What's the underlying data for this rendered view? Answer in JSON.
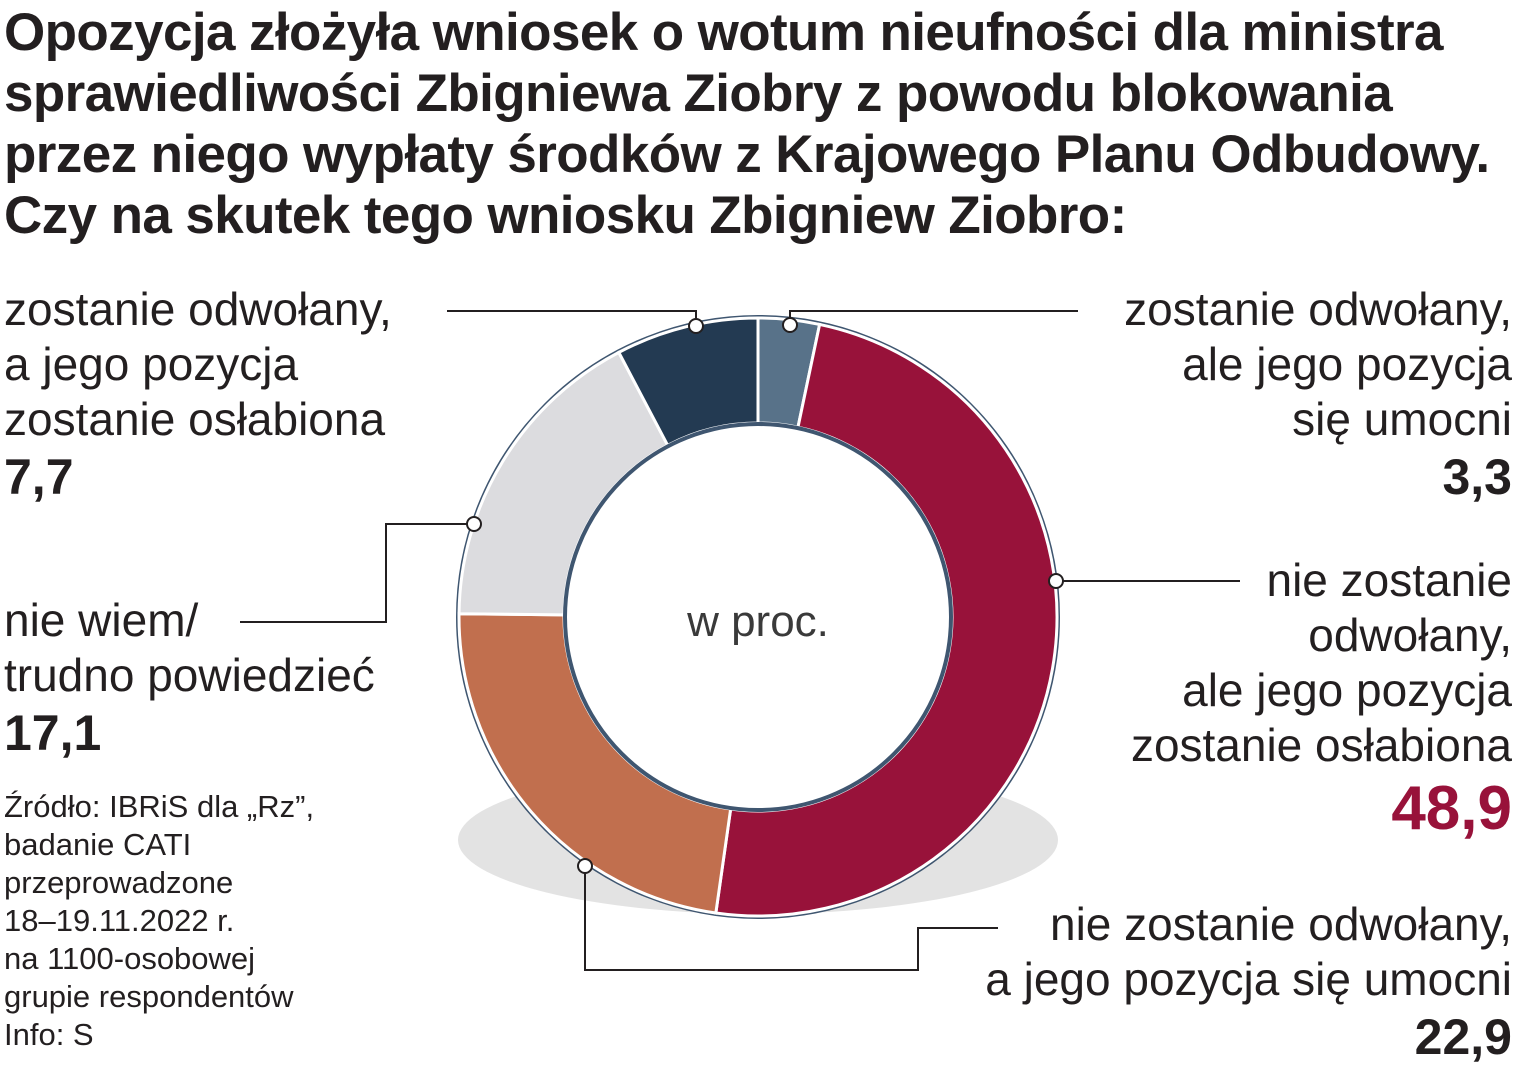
{
  "title": "Opozycja złożyła wniosek o wotum nieufności dla ministra sprawiedliwości Zbigniewa Ziobry z powodu blokowania przez niego wypłaty środków z Krajowego Planu Odbudowy. Czy na skutek tego wniosku Zbigniew Ziobro:",
  "center_label": "w proc.",
  "source": "Źródło: IBRiS dla „Rz”,\nbadanie CATI\nprzeprowadzone\n18–19.11.2022 r.\nna 1100-osobowej\ngrupie respondentów\nInfo: S",
  "colors": {
    "ring_outline": "#3f5670",
    "leader": "#231f20",
    "highlight_value": "#98123a",
    "shadow": "#e3e3e3"
  },
  "chart_data": {
    "type": "pie",
    "unit": "w proc.",
    "slices": [
      {
        "label": "zostanie odwołany, ale jego pozycja się umocni",
        "value": 3.3,
        "value_label": "3,3",
        "color": "#587289"
      },
      {
        "label": "nie zostanie odwołany, ale jego pozycja zostanie osłabiona",
        "value": 48.9,
        "value_label": "48,9",
        "color": "#98123a"
      },
      {
        "label": "nie zostanie odwołany, a jego pozycja się umocni",
        "value": 22.9,
        "value_label": "22,9",
        "color": "#c16f4e"
      },
      {
        "label": "nie wiem/ trudno powiedzieć",
        "value": 17.1,
        "value_label": "17,1",
        "color": "#dcdcdf"
      },
      {
        "label": "zostanie odwołany, a jego pozycja zostanie osłabiona",
        "value": 7.7,
        "value_label": "7,7",
        "color": "#233a52"
      }
    ]
  },
  "labels": {
    "s1": {
      "lines": [
        "zostanie odwołany,",
        "ale jego pozycja",
        "się umocni"
      ],
      "value": "3,3"
    },
    "s2": {
      "lines": [
        "nie zostanie",
        "odwołany,",
        "ale jego pozycja",
        "zostanie osłabiona"
      ],
      "value": "48,9"
    },
    "s3": {
      "lines": [
        "nie zostanie odwołany,",
        "a jego pozycja się umocni"
      ],
      "value": "22,9"
    },
    "s4": {
      "lines": [
        "nie wiem/",
        "trudno powiedzieć"
      ],
      "value": "17,1"
    },
    "s5": {
      "lines": [
        "zostanie odwołany,",
        "a jego pozycja",
        "zostanie osłabiona"
      ],
      "value": "7,7"
    }
  }
}
